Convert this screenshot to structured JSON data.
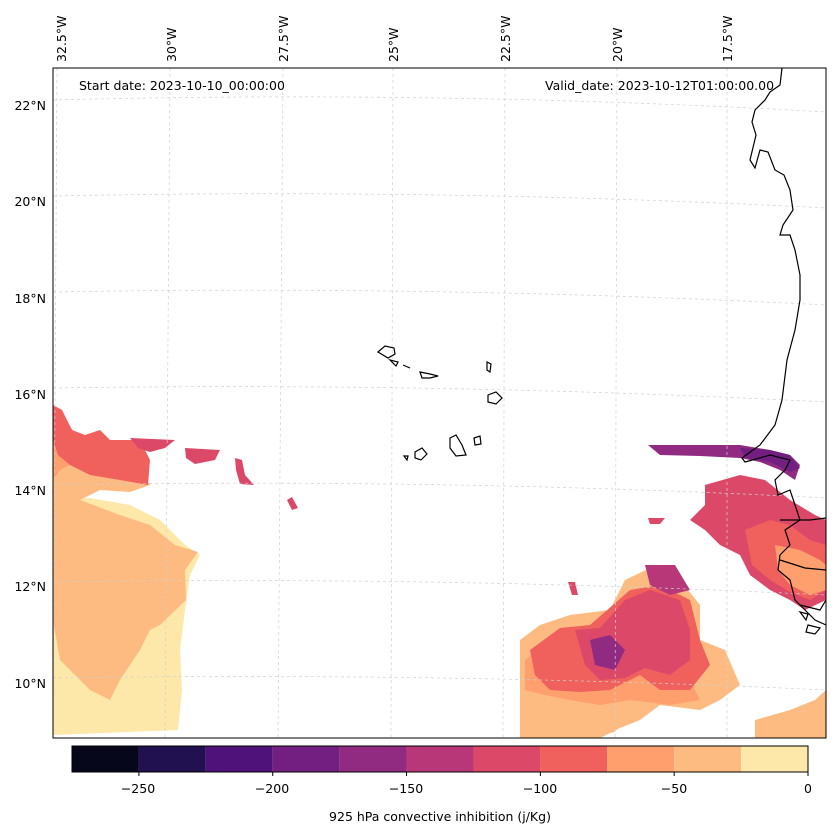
{
  "figure": {
    "start_date": "Start date: 2023-10-10_00:00:00",
    "valid_date": "Valid_date: 2023-10-12T01:00:00.00"
  },
  "longitude_labels": [
    "32.5°W",
    "30°W",
    "27.5°W",
    "25°W",
    "22.5°W",
    "20°W",
    "17.5°W"
  ],
  "latitude_labels": [
    "22°N",
    "20°N",
    "18°N",
    "16°N",
    "14°N",
    "12°N",
    "10°N"
  ],
  "colorbar": {
    "label": "925 hPa convective inhibition (j/Kg)",
    "ticks": [
      "−250",
      "−200",
      "−150",
      "−100",
      "−50",
      "0"
    ],
    "levels": [
      -275,
      -250,
      -225,
      -200,
      -175,
      -150,
      -125,
      -100,
      -75,
      -50,
      -25,
      0
    ],
    "colors": [
      "#07071c",
      "#221150",
      "#4f127b",
      "#721f81",
      "#912b81",
      "#b73779",
      "#dc4868",
      "#f0605d",
      "#fe9f6d",
      "#febb81",
      "#fde7a9"
    ]
  },
  "colors": {
    "coastline": "#000000",
    "gridline": "#d0d0d0"
  }
}
